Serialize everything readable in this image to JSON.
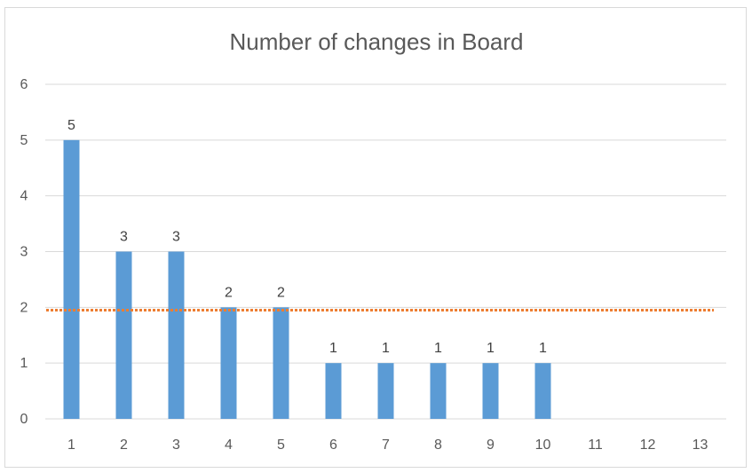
{
  "chart_data": {
    "type": "bar",
    "title": "Number of changes in Board",
    "xlabel": "",
    "ylabel": "",
    "categories": [
      "1",
      "2",
      "3",
      "4",
      "5",
      "6",
      "7",
      "8",
      "9",
      "10",
      "11",
      "12",
      "13"
    ],
    "values": [
      5,
      3,
      3,
      2,
      2,
      1,
      1,
      1,
      1,
      1,
      null,
      null,
      null
    ],
    "data_labels": [
      "5",
      "3",
      "3",
      "2",
      "2",
      "1",
      "1",
      "1",
      "1",
      "1",
      "",
      "",
      ""
    ],
    "ylim": [
      0,
      6
    ],
    "yticks": [
      "0",
      "1",
      "2",
      "3",
      "4",
      "5",
      "6"
    ],
    "average_line": {
      "value": 1.95,
      "style": "dotted"
    },
    "grid": true,
    "legend": "none",
    "colors": {
      "bar": "#5b9bd5",
      "average": "#ed7d31",
      "grid": "#d9d9d9",
      "text": "#595959"
    }
  }
}
